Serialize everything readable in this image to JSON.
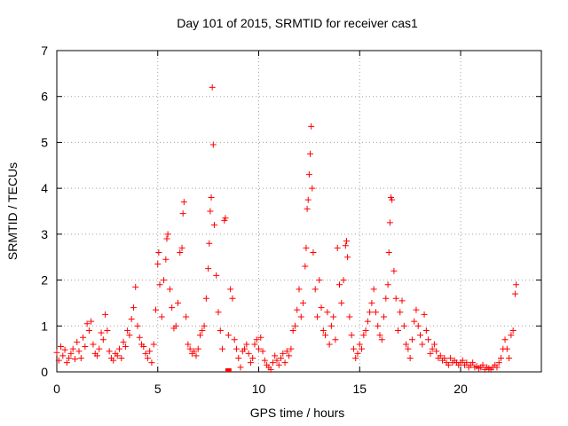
{
  "chart_data": {
    "type": "scatter",
    "title": "Day 101 of 2015, SRMTID for receiver cas1",
    "xlabel": "GPS time / hours",
    "ylabel": "SRMTID / TECUs",
    "xlim": [
      0,
      24
    ],
    "ylim": [
      0,
      7
    ],
    "x_ticks": [
      0,
      5,
      10,
      15,
      20
    ],
    "y_ticks": [
      0,
      1,
      2,
      3,
      4,
      5,
      6,
      7
    ],
    "grid": true,
    "marker": "plus",
    "series_color": "#ff0000",
    "series": [
      {
        "name": "cas1",
        "points": [
          [
            0.0,
            0.42
          ],
          [
            0.1,
            0.25
          ],
          [
            0.2,
            0.55
          ],
          [
            0.3,
            0.35
          ],
          [
            0.4,
            0.48
          ],
          [
            0.5,
            0.2
          ],
          [
            0.6,
            0.3
          ],
          [
            0.7,
            0.4
          ],
          [
            0.8,
            0.5
          ],
          [
            0.9,
            0.28
          ],
          [
            1.0,
            0.65
          ],
          [
            1.1,
            0.45
          ],
          [
            1.2,
            0.3
          ],
          [
            1.3,
            0.75
          ],
          [
            1.4,
            0.55
          ],
          [
            1.5,
            1.05
          ],
          [
            1.6,
            0.9
          ],
          [
            1.7,
            1.1
          ],
          [
            1.8,
            0.6
          ],
          [
            1.9,
            0.4
          ],
          [
            2.0,
            0.35
          ],
          [
            2.1,
            0.5
          ],
          [
            2.2,
            0.85
          ],
          [
            2.3,
            0.7
          ],
          [
            2.4,
            1.25
          ],
          [
            2.5,
            0.9
          ],
          [
            2.6,
            0.45
          ],
          [
            2.7,
            0.3
          ],
          [
            2.8,
            0.25
          ],
          [
            2.9,
            0.4
          ],
          [
            3.0,
            0.35
          ],
          [
            3.1,
            0.5
          ],
          [
            3.2,
            0.3
          ],
          [
            3.3,
            0.65
          ],
          [
            3.4,
            0.55
          ],
          [
            3.5,
            0.9
          ],
          [
            3.6,
            0.8
          ],
          [
            3.7,
            1.15
          ],
          [
            3.8,
            1.4
          ],
          [
            3.9,
            1.85
          ],
          [
            4.0,
            1.0
          ],
          [
            4.1,
            0.75
          ],
          [
            4.2,
            0.6
          ],
          [
            4.3,
            0.55
          ],
          [
            4.4,
            0.4
          ],
          [
            4.5,
            0.3
          ],
          [
            4.6,
            0.45
          ],
          [
            4.7,
            0.2
          ],
          [
            4.8,
            0.6
          ],
          [
            4.9,
            1.35
          ],
          [
            5.0,
            2.35
          ],
          [
            5.05,
            2.6
          ],
          [
            5.1,
            1.9
          ],
          [
            5.2,
            1.2
          ],
          [
            5.3,
            2.0
          ],
          [
            5.4,
            2.45
          ],
          [
            5.45,
            2.9
          ],
          [
            5.5,
            3.0
          ],
          [
            5.6,
            1.8
          ],
          [
            5.7,
            1.4
          ],
          [
            5.8,
            0.95
          ],
          [
            5.9,
            1.0
          ],
          [
            6.0,
            1.5
          ],
          [
            6.1,
            2.6
          ],
          [
            6.2,
            2.7
          ],
          [
            6.25,
            3.45
          ],
          [
            6.3,
            3.7
          ],
          [
            6.4,
            1.2
          ],
          [
            6.5,
            0.6
          ],
          [
            6.6,
            0.5
          ],
          [
            6.7,
            0.4
          ],
          [
            6.8,
            0.45
          ],
          [
            6.9,
            0.35
          ],
          [
            7.0,
            0.5
          ],
          [
            7.1,
            0.8
          ],
          [
            7.2,
            0.9
          ],
          [
            7.3,
            1.0
          ],
          [
            7.4,
            1.6
          ],
          [
            7.5,
            2.25
          ],
          [
            7.55,
            2.8
          ],
          [
            7.6,
            3.5
          ],
          [
            7.65,
            3.8
          ],
          [
            7.7,
            6.2
          ],
          [
            7.75,
            4.95
          ],
          [
            7.8,
            3.2
          ],
          [
            7.9,
            2.1
          ],
          [
            8.0,
            1.3
          ],
          [
            8.1,
            0.9
          ],
          [
            8.2,
            0.5
          ],
          [
            8.3,
            3.3
          ],
          [
            8.35,
            3.35
          ],
          [
            8.5,
            0.8
          ],
          [
            8.6,
            1.8
          ],
          [
            8.7,
            1.6
          ],
          [
            8.8,
            0.7
          ],
          [
            8.9,
            0.5
          ],
          [
            9.0,
            0.3
          ],
          [
            9.1,
            0.1
          ],
          [
            9.2,
            0.45
          ],
          [
            9.3,
            0.5
          ],
          [
            9.4,
            0.6
          ],
          [
            9.5,
            0.4
          ],
          [
            9.6,
            0.2
          ],
          [
            9.7,
            0.3
          ],
          [
            9.8,
            0.6
          ],
          [
            9.9,
            0.7
          ],
          [
            10.0,
            0.5
          ],
          [
            10.1,
            0.75
          ],
          [
            10.2,
            0.45
          ],
          [
            10.3,
            0.25
          ],
          [
            10.4,
            0.15
          ],
          [
            10.5,
            0.1
          ],
          [
            10.6,
            0.05
          ],
          [
            10.7,
            0.2
          ],
          [
            10.8,
            0.35
          ],
          [
            10.9,
            0.25
          ],
          [
            11.0,
            0.15
          ],
          [
            11.1,
            0.3
          ],
          [
            11.2,
            0.4
          ],
          [
            11.3,
            0.2
          ],
          [
            11.4,
            0.45
          ],
          [
            11.5,
            0.35
          ],
          [
            11.6,
            0.5
          ],
          [
            11.7,
            0.9
          ],
          [
            11.8,
            1.0
          ],
          [
            11.9,
            1.35
          ],
          [
            12.0,
            1.8
          ],
          [
            12.1,
            1.2
          ],
          [
            12.2,
            1.5
          ],
          [
            12.3,
            2.3
          ],
          [
            12.35,
            2.7
          ],
          [
            12.4,
            3.55
          ],
          [
            12.45,
            3.75
          ],
          [
            12.5,
            4.3
          ],
          [
            12.55,
            4.75
          ],
          [
            12.6,
            5.35
          ],
          [
            12.65,
            4.0
          ],
          [
            12.7,
            2.6
          ],
          [
            12.8,
            1.8
          ],
          [
            12.9,
            1.2
          ],
          [
            13.0,
            2.0
          ],
          [
            13.1,
            1.4
          ],
          [
            13.2,
            0.9
          ],
          [
            13.3,
            0.8
          ],
          [
            13.4,
            1.3
          ],
          [
            13.5,
            0.6
          ],
          [
            13.6,
            1.0
          ],
          [
            13.7,
            1.2
          ],
          [
            13.8,
            0.7
          ],
          [
            13.9,
            2.7
          ],
          [
            14.0,
            1.9
          ],
          [
            14.1,
            1.5
          ],
          [
            14.2,
            2.0
          ],
          [
            14.3,
            2.75
          ],
          [
            14.35,
            2.85
          ],
          [
            14.4,
            2.5
          ],
          [
            14.5,
            1.2
          ],
          [
            14.6,
            0.8
          ],
          [
            14.7,
            0.5
          ],
          [
            14.8,
            0.3
          ],
          [
            14.9,
            0.4
          ],
          [
            15.0,
            0.6
          ],
          [
            15.1,
            0.5
          ],
          [
            15.2,
            0.8
          ],
          [
            15.3,
            0.9
          ],
          [
            15.4,
            1.1
          ],
          [
            15.5,
            1.3
          ],
          [
            15.6,
            1.5
          ],
          [
            15.7,
            1.8
          ],
          [
            15.8,
            1.3
          ],
          [
            15.9,
            1.0
          ],
          [
            16.0,
            0.8
          ],
          [
            16.1,
            0.7
          ],
          [
            16.2,
            1.2
          ],
          [
            16.3,
            1.6
          ],
          [
            16.4,
            1.9
          ],
          [
            16.45,
            2.6
          ],
          [
            16.5,
            3.25
          ],
          [
            16.55,
            3.8
          ],
          [
            16.6,
            3.75
          ],
          [
            16.7,
            2.2
          ],
          [
            16.8,
            1.6
          ],
          [
            16.9,
            0.9
          ],
          [
            17.0,
            1.3
          ],
          [
            17.1,
            1.55
          ],
          [
            17.2,
            1.0
          ],
          [
            17.3,
            0.6
          ],
          [
            17.4,
            0.5
          ],
          [
            17.5,
            0.3
          ],
          [
            17.6,
            0.7
          ],
          [
            17.7,
            1.1
          ],
          [
            17.8,
            1.35
          ],
          [
            17.9,
            1.0
          ],
          [
            18.0,
            0.8
          ],
          [
            18.1,
            0.6
          ],
          [
            18.2,
            1.25
          ],
          [
            18.3,
            0.9
          ],
          [
            18.4,
            0.7
          ],
          [
            18.5,
            0.4
          ],
          [
            18.6,
            0.5
          ],
          [
            18.7,
            0.6
          ],
          [
            18.8,
            0.45
          ],
          [
            18.9,
            0.3
          ],
          [
            19.0,
            0.35
          ],
          [
            19.1,
            0.25
          ],
          [
            19.2,
            0.3
          ],
          [
            19.3,
            0.2
          ],
          [
            19.4,
            0.15
          ],
          [
            19.5,
            0.3
          ],
          [
            19.6,
            0.2
          ],
          [
            19.7,
            0.25
          ],
          [
            19.8,
            0.2
          ],
          [
            19.9,
            0.15
          ],
          [
            20.0,
            0.2
          ],
          [
            20.1,
            0.25
          ],
          [
            20.2,
            0.15
          ],
          [
            20.3,
            0.2
          ],
          [
            20.4,
            0.1
          ],
          [
            20.5,
            0.15
          ],
          [
            20.6,
            0.2
          ],
          [
            20.7,
            0.1
          ],
          [
            20.8,
            0.12
          ],
          [
            20.9,
            0.08
          ],
          [
            21.0,
            0.1
          ],
          [
            21.1,
            0.15
          ],
          [
            21.2,
            0.05
          ],
          [
            21.3,
            0.1
          ],
          [
            21.4,
            0.08
          ],
          [
            21.5,
            0.05
          ],
          [
            21.6,
            0.1
          ],
          [
            21.7,
            0.15
          ],
          [
            21.8,
            0.1
          ],
          [
            21.9,
            0.2
          ],
          [
            22.0,
            0.3
          ],
          [
            22.1,
            0.5
          ],
          [
            22.2,
            0.7
          ],
          [
            22.3,
            0.5
          ],
          [
            22.4,
            0.3
          ],
          [
            22.5,
            0.8
          ],
          [
            22.6,
            0.9
          ],
          [
            22.7,
            1.7
          ],
          [
            22.75,
            1.9
          ]
        ]
      }
    ],
    "gap_markers": [
      {
        "x_start": 8.35,
        "x_end": 8.65,
        "y": 0.0
      }
    ]
  }
}
